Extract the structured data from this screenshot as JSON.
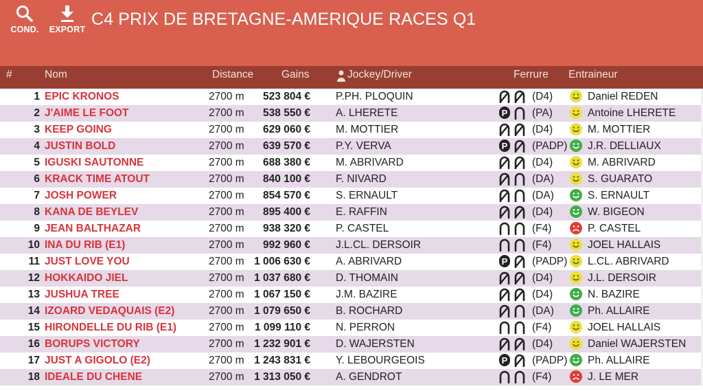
{
  "header": {
    "title": "C4 PRIX DE BRETAGNE-AMERIQUE RACES Q1",
    "cond_label": "COND.",
    "export_label": "EXPORT",
    "colors": {
      "header": "#d9604f",
      "table_header": "#983f31",
      "row_alt": "#e6d9e8",
      "name": "#d8343c"
    }
  },
  "table": {
    "headers": {
      "num": "#",
      "nom": "Nom",
      "distance": "Distance",
      "gains": "Gains",
      "jockey": "Jockey/Driver",
      "ferrure": "Ferrure",
      "entraineur": "Entraineur"
    },
    "rows": [
      {
        "num": "1",
        "nom": "EPIC KRONOS",
        "distance": "2700 m",
        "gains": "523 804 €",
        "jockey": "P.PH. PLOQUIN",
        "shoe_front": "barefoot",
        "shoe_back": "barefoot",
        "ferrure": "(D4)",
        "mood": "neutral",
        "trainer": "Daniel REDEN"
      },
      {
        "num": "2",
        "nom": "J'AIME LE FOOT",
        "distance": "2700 m",
        "gains": "538 550 €",
        "jockey": "A. LHERETE",
        "shoe_front": "plate",
        "shoe_back": "shod",
        "ferrure": "(PA)",
        "mood": "neutral",
        "trainer": "Antoine LHERETE"
      },
      {
        "num": "3",
        "nom": "KEEP GOING",
        "distance": "2700 m",
        "gains": "629 060 €",
        "jockey": "M. MOTTIER",
        "shoe_front": "barefoot",
        "shoe_back": "barefoot",
        "ferrure": "(D4)",
        "mood": "neutral",
        "trainer": "M. MOTTIER"
      },
      {
        "num": "4",
        "nom": "JUSTIN BOLD",
        "distance": "2700 m",
        "gains": "639 570 €",
        "jockey": "P.Y. VERVA",
        "shoe_front": "plate",
        "shoe_back": "barefoot",
        "ferrure": "(PADP)",
        "mood": "happy",
        "trainer": "J.R. DELLIAUX"
      },
      {
        "num": "5",
        "nom": "IGUSKI SAUTONNE",
        "distance": "2700 m",
        "gains": "688 380 €",
        "jockey": "M. ABRIVARD",
        "shoe_front": "barefoot",
        "shoe_back": "barefoot",
        "ferrure": "(D4)",
        "mood": "neutral",
        "trainer": "M. ABRIVARD"
      },
      {
        "num": "6",
        "nom": "KRACK TIME ATOUT",
        "distance": "2700 m",
        "gains": "840 100 €",
        "jockey": "F. NIVARD",
        "shoe_front": "barefoot",
        "shoe_back": "shod",
        "ferrure": "(DA)",
        "mood": "neutral",
        "trainer": "S. GUARATO"
      },
      {
        "num": "7",
        "nom": "JOSH POWER",
        "distance": "2700 m",
        "gains": "854 570 €",
        "jockey": "S. ERNAULT",
        "shoe_front": "barefoot",
        "shoe_back": "shod",
        "ferrure": "(DA)",
        "mood": "happy",
        "trainer": "S. ERNAULT"
      },
      {
        "num": "8",
        "nom": "KANA DE BEYLEV",
        "distance": "2700 m",
        "gains": "895 400 €",
        "jockey": "E. RAFFIN",
        "shoe_front": "barefoot",
        "shoe_back": "barefoot",
        "ferrure": "(D4)",
        "mood": "happy",
        "trainer": "W. BIGEON"
      },
      {
        "num": "9",
        "nom": "JEAN BALTHAZAR",
        "distance": "2700 m",
        "gains": "938 320 €",
        "jockey": "P. CASTEL",
        "shoe_front": "shod",
        "shoe_back": "shod",
        "ferrure": "(F4)",
        "mood": "sad",
        "trainer": "P. CASTEL"
      },
      {
        "num": "10",
        "nom": "INA DU RIB (E1)",
        "distance": "2700 m",
        "gains": "992 960 €",
        "jockey": "J.L.CL. DERSOIR",
        "shoe_front": "shod",
        "shoe_back": "shod",
        "ferrure": "(F4)",
        "mood": "neutral",
        "trainer": "JOEL HALLAIS"
      },
      {
        "num": "11",
        "nom": "JUST LOVE YOU",
        "distance": "2700 m",
        "gains": "1 006 630 €",
        "jockey": "A. ABRIVARD",
        "shoe_front": "plate",
        "shoe_back": "barefoot",
        "ferrure": "(PADP)",
        "mood": "neutral",
        "trainer": "L.CL. ABRIVARD"
      },
      {
        "num": "12",
        "nom": "HOKKAIDO JIEL",
        "distance": "2700 m",
        "gains": "1 037 680 €",
        "jockey": "D. THOMAIN",
        "shoe_front": "barefoot",
        "shoe_back": "barefoot",
        "ferrure": "(D4)",
        "mood": "neutral",
        "trainer": "J.L. DERSOIR"
      },
      {
        "num": "13",
        "nom": "JUSHUA TREE",
        "distance": "2700 m",
        "gains": "1 067 150 €",
        "jockey": "J.M. BAZIRE",
        "shoe_front": "barefoot",
        "shoe_back": "barefoot",
        "ferrure": "(D4)",
        "mood": "happy",
        "trainer": "N. BAZIRE"
      },
      {
        "num": "14",
        "nom": "IZOARD VEDAQUAIS (E2)",
        "distance": "2700 m",
        "gains": "1 079 650 €",
        "jockey": "B. ROCHARD",
        "shoe_front": "barefoot",
        "shoe_back": "shod",
        "ferrure": "(DA)",
        "mood": "happy",
        "trainer": "Ph. ALLAIRE"
      },
      {
        "num": "15",
        "nom": "HIRONDELLE DU RIB (E1)",
        "distance": "2700 m",
        "gains": "1 099 110 €",
        "jockey": "N. PERRON",
        "shoe_front": "shod",
        "shoe_back": "shod",
        "ferrure": "(F4)",
        "mood": "neutral",
        "trainer": "JOEL HALLAIS"
      },
      {
        "num": "16",
        "nom": "BORUPS VICTORY",
        "distance": "2700 m",
        "gains": "1 232 901 €",
        "jockey": "D. WAJERSTEN",
        "shoe_front": "barefoot",
        "shoe_back": "barefoot",
        "ferrure": "(D4)",
        "mood": "neutral",
        "trainer": "Daniel WAJERSTEN"
      },
      {
        "num": "17",
        "nom": "JUST A GIGOLO (E2)",
        "distance": "2700 m",
        "gains": "1 243 831 €",
        "jockey": "Y. LEBOURGEOIS",
        "shoe_front": "plate",
        "shoe_back": "barefoot",
        "ferrure": "(PADP)",
        "mood": "happy",
        "trainer": "Ph. ALLAIRE"
      },
      {
        "num": "18",
        "nom": "IDEALE DU CHENE",
        "distance": "2700 m",
        "gains": "1 313 050 €",
        "jockey": "A. GENDROT",
        "shoe_front": "shod",
        "shoe_back": "shod",
        "ferrure": "(F4)",
        "mood": "sad",
        "trainer": "J. LE MER"
      }
    ]
  }
}
